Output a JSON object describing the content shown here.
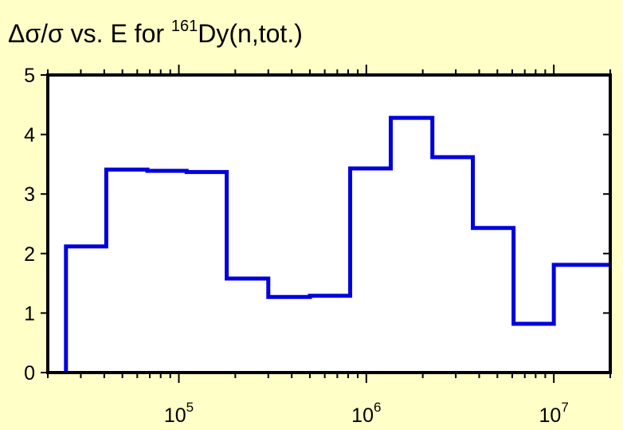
{
  "chart_data": {
    "type": "line",
    "title_parts": {
      "pre": "Δσ/σ vs. E for ",
      "sup": "161",
      "post": "Dy(n,tot.)"
    },
    "xlabel": "",
    "ylabel": "",
    "x_scale": "log",
    "xlim": [
      20000,
      20000000
    ],
    "ylim": [
      0,
      5
    ],
    "grid": false,
    "legend": "none",
    "line_color": "#0000DD",
    "y_ticks": [
      0,
      1,
      2,
      3,
      4,
      5
    ],
    "y_tick_labels": [
      "0",
      "1",
      "2",
      "3",
      "4",
      "5"
    ],
    "x_major_ticks": [
      100000,
      1000000,
      10000000
    ],
    "x_tick_labels": [
      {
        "base": "10",
        "exp": "5"
      },
      {
        "base": "10",
        "exp": "6"
      },
      {
        "base": "10",
        "exp": "7"
      }
    ],
    "steps": [
      {
        "x0": 25000,
        "x1": 41000,
        "y": 2.12
      },
      {
        "x0": 41000,
        "x1": 68000,
        "y": 3.41
      },
      {
        "x0": 68000,
        "x1": 110000,
        "y": 3.39
      },
      {
        "x0": 110000,
        "x1": 180000,
        "y": 3.37
      },
      {
        "x0": 180000,
        "x1": 300000,
        "y": 1.58
      },
      {
        "x0": 300000,
        "x1": 500000,
        "y": 1.27
      },
      {
        "x0": 500000,
        "x1": 820000,
        "y": 1.29
      },
      {
        "x0": 820000,
        "x1": 1350000,
        "y": 3.43
      },
      {
        "x0": 1350000,
        "x1": 2250000,
        "y": 4.28
      },
      {
        "x0": 2250000,
        "x1": 3700000,
        "y": 3.62
      },
      {
        "x0": 3700000,
        "x1": 6100000,
        "y": 2.43
      },
      {
        "x0": 6100000,
        "x1": 10000000,
        "y": 0.82
      },
      {
        "x0": 10000000,
        "x1": 20000000,
        "y": 1.81
      }
    ]
  }
}
